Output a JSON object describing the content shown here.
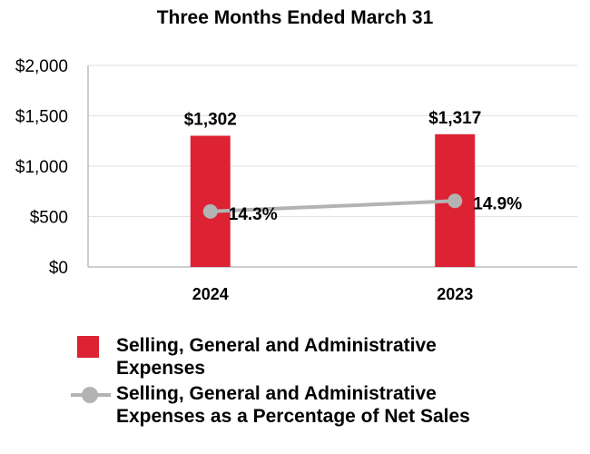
{
  "chart_data": {
    "type": "bar",
    "title": "Three Months Ended March 31",
    "categories": [
      "2024",
      "2023"
    ],
    "ylim": [
      0,
      2000
    ],
    "yticks": [
      0,
      500,
      1000,
      1500,
      2000
    ],
    "ytick_labels": [
      "$0",
      "$500",
      "$1,000",
      "$1,500",
      "$2,000"
    ],
    "grid": true,
    "series": [
      {
        "name": "Selling, General and Administrative Expenses",
        "kind": "bar",
        "values": [
          1302,
          1317
        ],
        "labels": [
          "$1,302",
          "$1,317"
        ]
      },
      {
        "name": "Selling, General and Administrative Expenses as a Percentage of Net Sales",
        "kind": "line",
        "values": [
          14.3,
          14.9
        ],
        "labels": [
          "14.3%",
          "14.9%"
        ]
      }
    ]
  },
  "colors": {
    "bar": "#dc2233",
    "line": "#b3b3b3",
    "grid": "#e2e2e2",
    "axis": "#bdbdbd"
  },
  "legend": {
    "bar_label_line1": "Selling, General and Administrative",
    "bar_label_line2": "Expenses",
    "line_label_line1": "Selling, General and Administrative",
    "line_label_line2": "Expenses as a Percentage of Net Sales"
  }
}
